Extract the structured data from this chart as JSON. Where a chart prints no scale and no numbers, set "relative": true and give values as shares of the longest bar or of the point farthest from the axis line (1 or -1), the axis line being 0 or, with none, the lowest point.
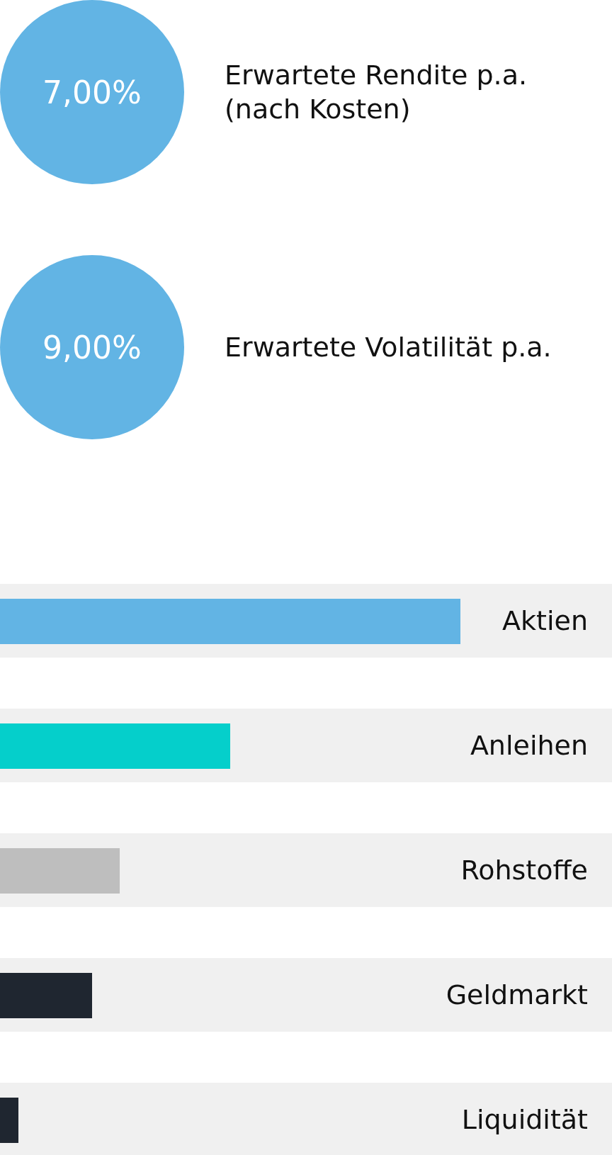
{
  "chart_data": [
    {
      "type": "other",
      "categories": [
        "Erwartete Rendite p.a. (nach Kosten)",
        "Erwartete Volatilität p.a."
      ],
      "values": [
        7,
        9
      ],
      "value_labels": [
        "7,00%",
        "9,00%"
      ],
      "color": "#62b4e4"
    },
    {
      "type": "bar",
      "orientation": "horizontal",
      "relative": true,
      "categories": [
        "Aktien",
        "Anleihen",
        "Rohstoffe",
        "Geldmarkt",
        "Liquidität"
      ],
      "values": [
        1,
        0.5,
        0.26,
        0.2,
        0.04
      ],
      "colors": [
        "#62b4e4",
        "#05cfcb",
        "#bebebe",
        "#1f2630",
        "#1f2630"
      ],
      "bands": [
        {
          "axis": "y",
          "from": "Aktien",
          "to": "Aktien",
          "color": "#f0f0f0"
        },
        {
          "axis": "y",
          "from": "Anleihen",
          "to": "Anleihen",
          "color": "#f0f0f0"
        },
        {
          "axis": "y",
          "from": "Rohstoffe",
          "to": "Rohstoffe",
          "color": "#f0f0f0"
        },
        {
          "axis": "y",
          "from": "Geldmarkt",
          "to": "Geldmarkt",
          "color": "#f0f0f0"
        },
        {
          "axis": "y",
          "from": "Liquidität",
          "to": "Liquidität",
          "color": "#f0f0f0"
        }
      ]
    }
  ]
}
